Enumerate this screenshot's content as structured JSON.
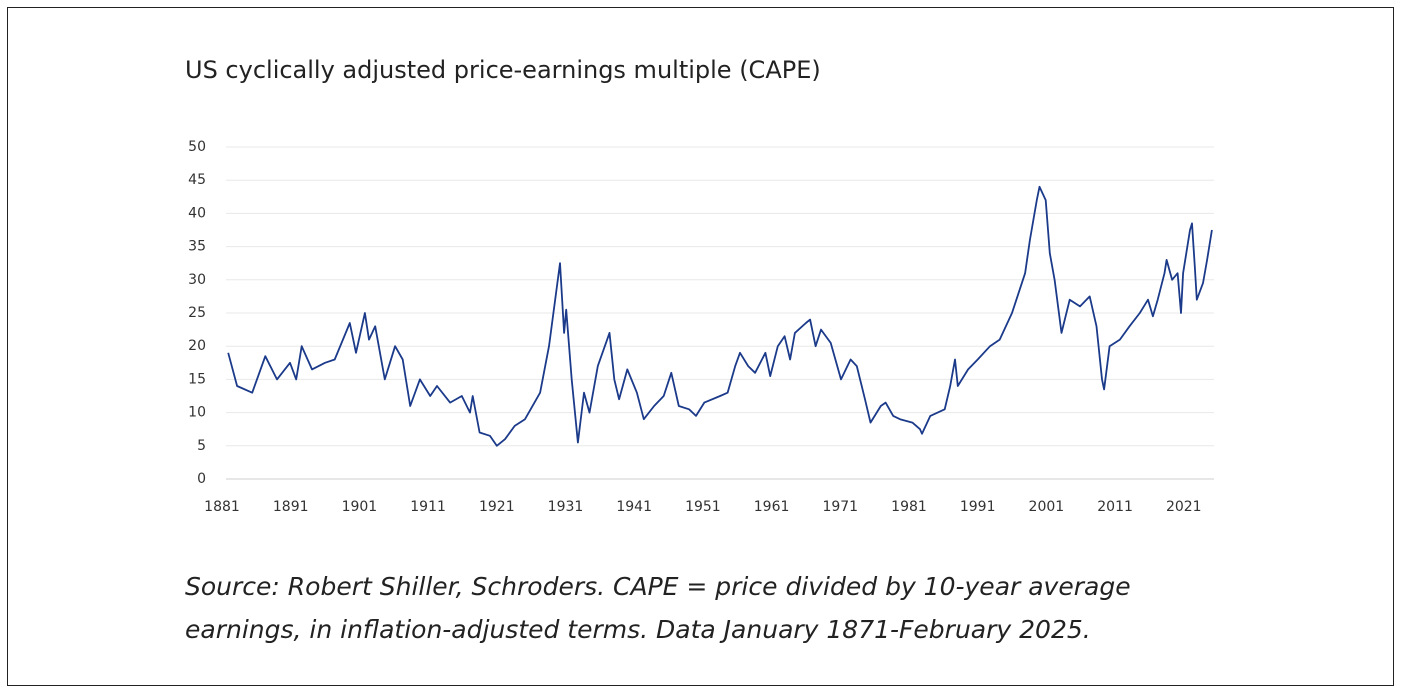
{
  "chart_data": {
    "type": "line",
    "title": "US cyclically adjusted price-earnings multiple (CAPE)",
    "source_lines": [
      "Source: Robert Shiller, Schroders. CAPE = price divided by 10-year average",
      "earnings, in inflation-adjusted terms. Data January 1871-February 2025."
    ],
    "xlim": [
      1881,
      2025.4
    ],
    "xticks": [
      1881,
      1891,
      1901,
      1911,
      1921,
      1931,
      1941,
      1951,
      1961,
      1971,
      1981,
      1991,
      2001,
      2011,
      2021
    ],
    "ylim": [
      0,
      50
    ],
    "yticks": [
      0,
      5,
      10,
      15,
      20,
      25,
      30,
      35,
      40,
      45,
      50
    ],
    "grid": true,
    "series": [
      {
        "name": "CAPE",
        "color": "#1b3a8a",
        "x": [
          1881.9,
          1883.2,
          1885.4,
          1887.3,
          1889,
          1890.9,
          1891.8,
          1892.6,
          1894.1,
          1896,
          1897.4,
          1899.6,
          1900.5,
          1901.8,
          1902.4,
          1903.3,
          1904.7,
          1906.2,
          1907.3,
          1908.4,
          1909.8,
          1911.3,
          1912.3,
          1914.2,
          1915.9,
          1917.1,
          1917.5,
          1918.5,
          1920,
          1921,
          1922.2,
          1923.6,
          1925.1,
          1927.3,
          1928.6,
          1930.2,
          1930.8,
          1931.1,
          1931.9,
          1932.8,
          1933.7,
          1934.5,
          1935.7,
          1937.4,
          1938.1,
          1938.8,
          1940,
          1941.4,
          1942.4,
          1943.9,
          1945.3,
          1946.4,
          1947.5,
          1949,
          1950,
          1951.2,
          1953.5,
          1954.6,
          1955.7,
          1956.4,
          1957.6,
          1958.6,
          1960.1,
          1960.8,
          1961.9,
          1962.9,
          1963.7,
          1964.4,
          1966,
          1966.6,
          1967.4,
          1968.2,
          1969.6,
          1971.1,
          1972.5,
          1973.4,
          1974.6,
          1975.4,
          1976.9,
          1977.6,
          1978.7,
          1979.7,
          1981.5,
          1982.6,
          1982.9,
          1984.1,
          1986.2,
          1987,
          1987.7,
          1988.1,
          1989.6,
          1991,
          1992.8,
          1994.2,
          1996,
          1997.9,
          1998.6,
          1999.6,
          2000,
          2000.9,
          2001.5,
          2002.2,
          2003.2,
          2004.4,
          2005.9,
          2007.3,
          2008.3,
          2009.1,
          2009.4,
          2010.2,
          2011.7,
          2013.1,
          2014.6,
          2015.8,
          2016.5,
          2017.2,
          2018.2,
          2018.5,
          2019.3,
          2020.1,
          2020.6,
          2020.9,
          2021.9,
          2022.2,
          2022.6,
          2022.9,
          2023.8,
          2024.4,
          2025.1
        ],
        "values": [
          19,
          14,
          13,
          18.5,
          15,
          17.5,
          15,
          20,
          16.5,
          17.5,
          18,
          23.5,
          19,
          25,
          21,
          23,
          15,
          20,
          18,
          11,
          15,
          12.5,
          14,
          11.5,
          12.5,
          10,
          12.5,
          7,
          6.5,
          5,
          6,
          8,
          9,
          13,
          20,
          32.5,
          22,
          25.5,
          15,
          5.5,
          13,
          10,
          17,
          22,
          15,
          12,
          16.5,
          13,
          9,
          11,
          12.5,
          16,
          11,
          10.5,
          9.5,
          11.5,
          12.5,
          13,
          17,
          19,
          17,
          16,
          19,
          15.5,
          20,
          21.5,
          18,
          22,
          23.5,
          24,
          20,
          22.5,
          20.5,
          15,
          18,
          17,
          12,
          8.5,
          11,
          11.5,
          9.5,
          9,
          8.5,
          7.5,
          6.8,
          9.5,
          10.5,
          14,
          18,
          14,
          16.5,
          18,
          20,
          21,
          25,
          31,
          36,
          42,
          44,
          42,
          34,
          30,
          22,
          27,
          26,
          27.5,
          23,
          15,
          13.5,
          20,
          21,
          23,
          25,
          27,
          24.5,
          27,
          31,
          33,
          30,
          31,
          25,
          31,
          37.5,
          38.5,
          32,
          27,
          29.5,
          33,
          37.5
        ]
      }
    ]
  }
}
